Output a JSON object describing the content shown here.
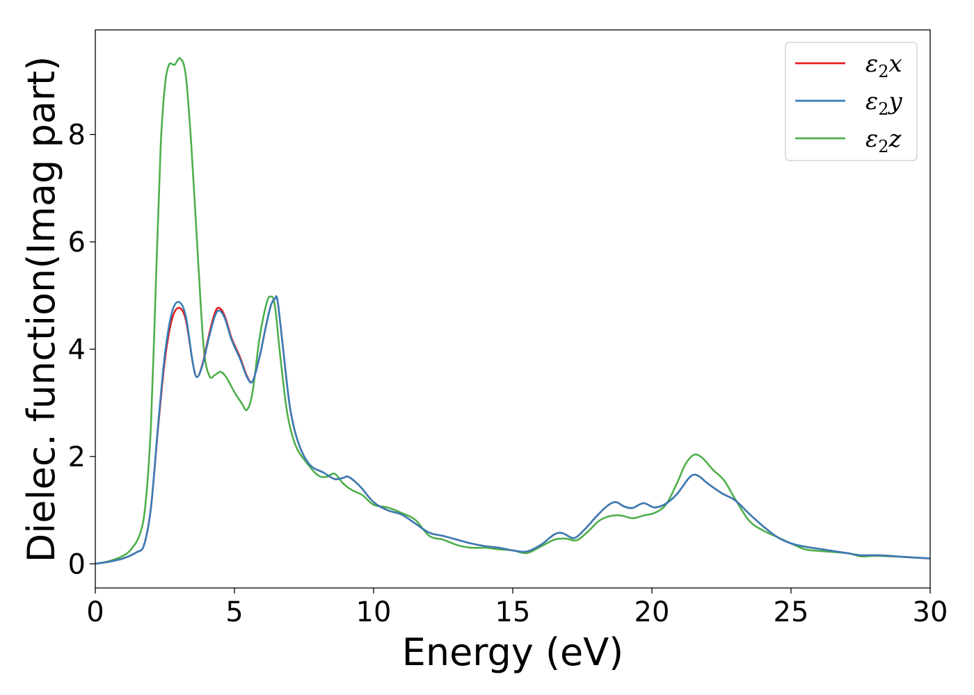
{
  "chart_data": {
    "type": "line",
    "title": "",
    "xlabel": "Energy (eV)",
    "ylabel": "Dielec. function(Imag part)",
    "xlim": [
      0,
      30
    ],
    "ylim": [
      -0.45,
      9.95
    ],
    "xticks": [
      0,
      5,
      10,
      15,
      20,
      25,
      30
    ],
    "xtick_labels": [
      "0",
      "5",
      "10",
      "15",
      "20",
      "25",
      "30"
    ],
    "yticks": [
      0,
      2,
      4,
      6,
      8
    ],
    "ytick_labels": [
      "0",
      "2",
      "4",
      "6",
      "8"
    ],
    "grid": false,
    "legend_position": "top-right",
    "series": [
      {
        "name": "ε2x",
        "legend_main": "ε",
        "legend_sub": "2",
        "legend_axis": "x",
        "color": "#e41a1c",
        "points": [
          [
            0,
            0
          ],
          [
            0.5,
            0.04
          ],
          [
            1.0,
            0.1
          ],
          [
            1.5,
            0.22
          ],
          [
            1.75,
            0.35
          ],
          [
            2.0,
            1.05
          ],
          [
            2.25,
            2.5
          ],
          [
            2.5,
            3.8
          ],
          [
            2.75,
            4.55
          ],
          [
            3.0,
            4.77
          ],
          [
            3.25,
            4.55
          ],
          [
            3.5,
            3.75
          ],
          [
            3.65,
            3.48
          ],
          [
            3.85,
            3.72
          ],
          [
            4.1,
            4.3
          ],
          [
            4.3,
            4.68
          ],
          [
            4.45,
            4.77
          ],
          [
            4.65,
            4.62
          ],
          [
            4.9,
            4.2
          ],
          [
            5.2,
            3.85
          ],
          [
            5.45,
            3.5
          ],
          [
            5.65,
            3.4
          ],
          [
            5.9,
            3.85
          ],
          [
            6.1,
            4.35
          ],
          [
            6.3,
            4.8
          ],
          [
            6.45,
            4.94
          ],
          [
            6.55,
            4.9
          ],
          [
            6.75,
            4.0
          ],
          [
            7.0,
            2.9
          ],
          [
            7.3,
            2.25
          ],
          [
            7.7,
            1.85
          ],
          [
            8.2,
            1.7
          ],
          [
            8.6,
            1.58
          ],
          [
            8.9,
            1.6
          ],
          [
            9.1,
            1.62
          ],
          [
            9.5,
            1.45
          ],
          [
            10.0,
            1.15
          ],
          [
            10.5,
            1.0
          ],
          [
            11.0,
            0.92
          ],
          [
            11.5,
            0.75
          ],
          [
            12.0,
            0.58
          ],
          [
            12.5,
            0.52
          ],
          [
            13.0,
            0.45
          ],
          [
            13.5,
            0.38
          ],
          [
            14.0,
            0.33
          ],
          [
            14.5,
            0.3
          ],
          [
            15.0,
            0.25
          ],
          [
            15.5,
            0.23
          ],
          [
            16.0,
            0.35
          ],
          [
            16.5,
            0.55
          ],
          [
            16.8,
            0.57
          ],
          [
            17.2,
            0.48
          ],
          [
            17.6,
            0.65
          ],
          [
            18.0,
            0.88
          ],
          [
            18.4,
            1.08
          ],
          [
            18.7,
            1.15
          ],
          [
            19.0,
            1.07
          ],
          [
            19.3,
            1.04
          ],
          [
            19.7,
            1.13
          ],
          [
            20.1,
            1.05
          ],
          [
            20.5,
            1.12
          ],
          [
            20.9,
            1.3
          ],
          [
            21.3,
            1.58
          ],
          [
            21.5,
            1.66
          ],
          [
            21.7,
            1.63
          ],
          [
            22.0,
            1.5
          ],
          [
            22.5,
            1.32
          ],
          [
            23.0,
            1.18
          ],
          [
            23.5,
            0.93
          ],
          [
            24.0,
            0.7
          ],
          [
            24.5,
            0.5
          ],
          [
            25.0,
            0.38
          ],
          [
            25.5,
            0.32
          ],
          [
            26.0,
            0.28
          ],
          [
            27.0,
            0.2
          ],
          [
            27.5,
            0.16
          ],
          [
            28.0,
            0.16
          ],
          [
            28.5,
            0.15
          ],
          [
            29.0,
            0.13
          ],
          [
            30.0,
            0.1
          ]
        ]
      },
      {
        "name": "ε2y",
        "legend_main": "ε",
        "legend_sub": "2",
        "legend_axis": "y",
        "color": "#377eb8",
        "points": [
          [
            0,
            0
          ],
          [
            0.5,
            0.04
          ],
          [
            1.0,
            0.1
          ],
          [
            1.5,
            0.22
          ],
          [
            1.75,
            0.35
          ],
          [
            2.0,
            1.05
          ],
          [
            2.25,
            2.55
          ],
          [
            2.5,
            3.9
          ],
          [
            2.75,
            4.68
          ],
          [
            3.0,
            4.88
          ],
          [
            3.25,
            4.62
          ],
          [
            3.5,
            3.75
          ],
          [
            3.65,
            3.48
          ],
          [
            3.85,
            3.7
          ],
          [
            4.1,
            4.25
          ],
          [
            4.3,
            4.62
          ],
          [
            4.45,
            4.72
          ],
          [
            4.65,
            4.58
          ],
          [
            4.9,
            4.17
          ],
          [
            5.2,
            3.82
          ],
          [
            5.45,
            3.48
          ],
          [
            5.65,
            3.4
          ],
          [
            5.9,
            3.85
          ],
          [
            6.1,
            4.35
          ],
          [
            6.3,
            4.8
          ],
          [
            6.45,
            4.94
          ],
          [
            6.55,
            4.9
          ],
          [
            6.75,
            4.0
          ],
          [
            7.0,
            2.9
          ],
          [
            7.3,
            2.25
          ],
          [
            7.7,
            1.85
          ],
          [
            8.2,
            1.7
          ],
          [
            8.6,
            1.58
          ],
          [
            8.9,
            1.6
          ],
          [
            9.1,
            1.62
          ],
          [
            9.5,
            1.45
          ],
          [
            10.0,
            1.15
          ],
          [
            10.5,
            1.0
          ],
          [
            11.0,
            0.92
          ],
          [
            11.5,
            0.75
          ],
          [
            12.0,
            0.58
          ],
          [
            12.5,
            0.52
          ],
          [
            13.0,
            0.45
          ],
          [
            13.5,
            0.38
          ],
          [
            14.0,
            0.33
          ],
          [
            14.5,
            0.3
          ],
          [
            15.0,
            0.25
          ],
          [
            15.5,
            0.23
          ],
          [
            16.0,
            0.35
          ],
          [
            16.5,
            0.55
          ],
          [
            16.8,
            0.57
          ],
          [
            17.2,
            0.48
          ],
          [
            17.6,
            0.65
          ],
          [
            18.0,
            0.88
          ],
          [
            18.4,
            1.08
          ],
          [
            18.7,
            1.15
          ],
          [
            19.0,
            1.07
          ],
          [
            19.3,
            1.04
          ],
          [
            19.7,
            1.13
          ],
          [
            20.1,
            1.05
          ],
          [
            20.5,
            1.12
          ],
          [
            20.9,
            1.3
          ],
          [
            21.3,
            1.58
          ],
          [
            21.5,
            1.66
          ],
          [
            21.7,
            1.63
          ],
          [
            22.0,
            1.5
          ],
          [
            22.5,
            1.32
          ],
          [
            23.0,
            1.18
          ],
          [
            23.5,
            0.93
          ],
          [
            24.0,
            0.7
          ],
          [
            24.5,
            0.5
          ],
          [
            25.0,
            0.38
          ],
          [
            25.5,
            0.32
          ],
          [
            26.0,
            0.28
          ],
          [
            27.0,
            0.2
          ],
          [
            27.5,
            0.16
          ],
          [
            28.0,
            0.16
          ],
          [
            28.5,
            0.15
          ],
          [
            29.0,
            0.13
          ],
          [
            30.0,
            0.1
          ]
        ]
      },
      {
        "name": "ε2z",
        "legend_main": "ε",
        "legend_sub": "2",
        "legend_axis": "z",
        "color": "#4daf4a",
        "points": [
          [
            0,
            0
          ],
          [
            0.5,
            0.05
          ],
          [
            1.0,
            0.15
          ],
          [
            1.3,
            0.28
          ],
          [
            1.6,
            0.55
          ],
          [
            1.8,
            1.1
          ],
          [
            2.0,
            2.6
          ],
          [
            2.2,
            5.6
          ],
          [
            2.35,
            7.8
          ],
          [
            2.5,
            8.9
          ],
          [
            2.65,
            9.3
          ],
          [
            2.85,
            9.3
          ],
          [
            3.05,
            9.42
          ],
          [
            3.25,
            9.1
          ],
          [
            3.45,
            7.8
          ],
          [
            3.7,
            5.6
          ],
          [
            3.9,
            4.0
          ],
          [
            4.1,
            3.5
          ],
          [
            4.3,
            3.52
          ],
          [
            4.5,
            3.58
          ],
          [
            4.7,
            3.48
          ],
          [
            5.0,
            3.2
          ],
          [
            5.25,
            3.0
          ],
          [
            5.45,
            2.87
          ],
          [
            5.65,
            3.2
          ],
          [
            5.9,
            4.2
          ],
          [
            6.15,
            4.85
          ],
          [
            6.3,
            4.98
          ],
          [
            6.45,
            4.82
          ],
          [
            6.65,
            3.85
          ],
          [
            6.9,
            2.8
          ],
          [
            7.2,
            2.2
          ],
          [
            7.6,
            1.88
          ],
          [
            8.0,
            1.65
          ],
          [
            8.3,
            1.62
          ],
          [
            8.6,
            1.68
          ],
          [
            8.9,
            1.5
          ],
          [
            9.2,
            1.38
          ],
          [
            9.6,
            1.28
          ],
          [
            10.0,
            1.1
          ],
          [
            10.5,
            1.05
          ],
          [
            11.0,
            0.95
          ],
          [
            11.5,
            0.82
          ],
          [
            12.0,
            0.52
          ],
          [
            12.5,
            0.45
          ],
          [
            13.0,
            0.35
          ],
          [
            13.5,
            0.3
          ],
          [
            14.0,
            0.3
          ],
          [
            14.5,
            0.27
          ],
          [
            15.0,
            0.25
          ],
          [
            15.5,
            0.2
          ],
          [
            16.0,
            0.32
          ],
          [
            16.5,
            0.45
          ],
          [
            16.9,
            0.47
          ],
          [
            17.3,
            0.44
          ],
          [
            17.7,
            0.6
          ],
          [
            18.1,
            0.8
          ],
          [
            18.5,
            0.89
          ],
          [
            18.9,
            0.9
          ],
          [
            19.3,
            0.85
          ],
          [
            19.7,
            0.9
          ],
          [
            20.1,
            0.95
          ],
          [
            20.5,
            1.1
          ],
          [
            20.9,
            1.5
          ],
          [
            21.2,
            1.85
          ],
          [
            21.5,
            2.03
          ],
          [
            21.8,
            1.98
          ],
          [
            22.2,
            1.75
          ],
          [
            22.6,
            1.55
          ],
          [
            23.0,
            1.2
          ],
          [
            23.5,
            0.8
          ],
          [
            24.0,
            0.62
          ],
          [
            24.5,
            0.5
          ],
          [
            25.0,
            0.38
          ],
          [
            25.5,
            0.27
          ],
          [
            26.0,
            0.24
          ],
          [
            27.0,
            0.2
          ],
          [
            27.5,
            0.14
          ],
          [
            28.0,
            0.15
          ],
          [
            28.5,
            0.14
          ],
          [
            29.0,
            0.13
          ],
          [
            30.0,
            0.1
          ]
        ]
      }
    ]
  }
}
